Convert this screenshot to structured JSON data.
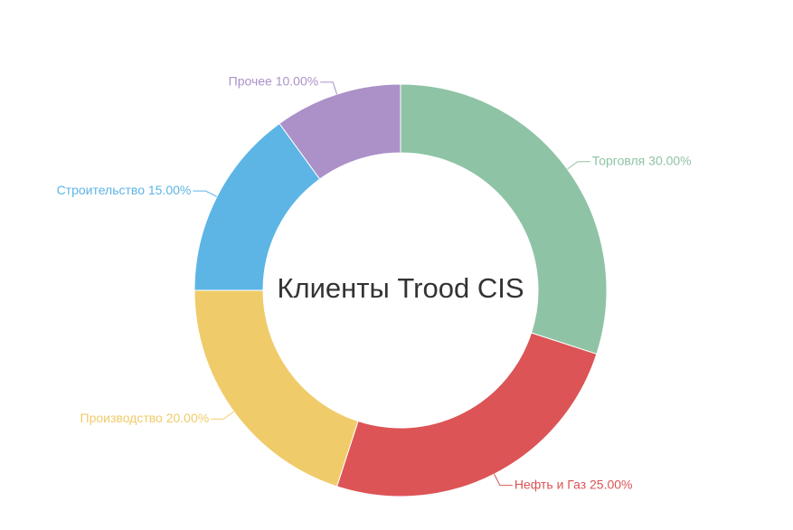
{
  "chart_data": {
    "type": "pie",
    "variant": "donut",
    "title": "Клиенты Trood CIS",
    "categories": [
      "Торговля",
      "Нефть и Газ",
      "Производство",
      "Строительство",
      "Прочее"
    ],
    "values": [
      30,
      25,
      20,
      15,
      10
    ],
    "labels": [
      "Торговля 30.00%",
      "Нефть и Газ 25.00%",
      "Производство 20.00%",
      "Строительство 15.00%",
      "Прочее 10.00%"
    ],
    "colors": [
      "#8fc3a6",
      "#dc5456",
      "#f0cb69",
      "#5db5e5",
      "#ab91c8"
    ],
    "legend": "none",
    "grid": false
  }
}
